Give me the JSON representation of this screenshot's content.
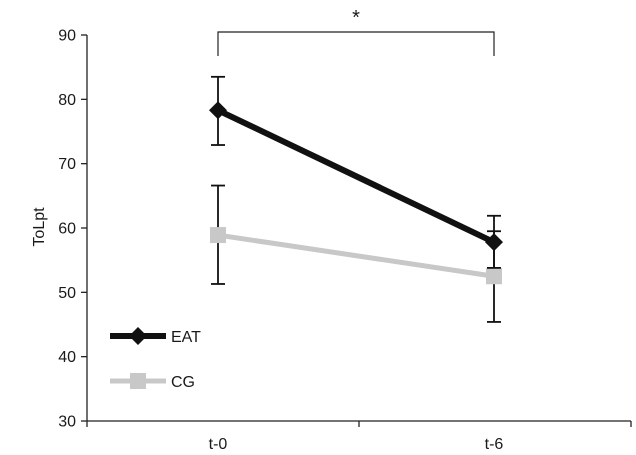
{
  "chart_data": {
    "type": "line",
    "title": "",
    "xlabel": "",
    "ylabel": "ToLpt",
    "categories": [
      "t-0",
      "t-6"
    ],
    "ylim": [
      30,
      90
    ],
    "yticks": [
      30,
      40,
      50,
      60,
      70,
      80,
      90
    ],
    "grid": false,
    "legend_position": "bottom-left",
    "series": [
      {
        "name": "EAT",
        "color": "#111111",
        "marker": "diamond",
        "values": [
          78.3,
          57.8
        ],
        "error_low": [
          72.9,
          53.8
        ],
        "error_high": [
          83.5,
          61.9
        ]
      },
      {
        "name": "CG",
        "color": "#c8c8c8",
        "marker": "square",
        "values": [
          58.9,
          52.5
        ],
        "error_low": [
          51.3,
          45.4
        ],
        "error_high": [
          66.6,
          59.5
        ]
      }
    ],
    "annotations": [
      {
        "text": "*",
        "type": "significance-bracket",
        "between": [
          "t-0",
          "t-6"
        ]
      }
    ]
  }
}
